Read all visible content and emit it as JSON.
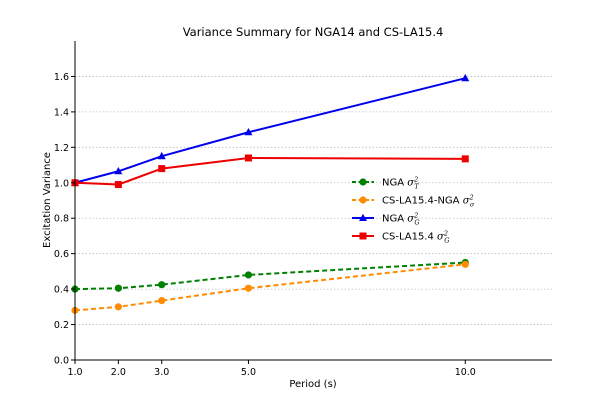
{
  "chart_data": {
    "type": "line",
    "title": "Variance Summary for NGA14 and CS-LA15.4",
    "xlabel": "Period (s)",
    "ylabel": "Excitation Variance",
    "x": [
      1.0,
      2.0,
      3.0,
      5.0,
      10.0
    ],
    "x_tick_labels": [
      "1.0",
      "2.0",
      "3.0",
      "5.0",
      "10.0"
    ],
    "y_ticks": [
      0.0,
      0.2,
      0.4,
      0.6,
      0.8,
      1.0,
      1.2,
      1.4,
      1.6
    ],
    "y_tick_labels": [
      "0.0",
      "0.2",
      "0.4",
      "0.6",
      "0.8",
      "1.0",
      "1.2",
      "1.4",
      "1.6"
    ],
    "xlim": [
      1.0,
      12.0
    ],
    "ylim": [
      0.0,
      1.8
    ],
    "grid": "horizontal dotted",
    "legend_position": "center-right",
    "series": [
      {
        "name": "NGA",
        "symbol": "σ",
        "sup": "2",
        "sub": "T",
        "color": "#008000",
        "linestyle": "dashed",
        "marker": "circle",
        "values": [
          0.4,
          0.405,
          0.425,
          0.48,
          0.55
        ]
      },
      {
        "name": "CS-LA15.4-NGA",
        "symbol": "σ",
        "sup": "2",
        "sub": "σ",
        "color": "#ff8c00",
        "linestyle": "dashed",
        "marker": "circle",
        "values": [
          0.28,
          0.3,
          0.335,
          0.405,
          0.54
        ]
      },
      {
        "name": "NGA",
        "symbol": "σ",
        "sup": "2",
        "sub": "G",
        "color": "#0000ee",
        "linestyle": "solid",
        "marker": "triangle",
        "values": [
          1.0,
          1.065,
          1.15,
          1.285,
          1.59
        ]
      },
      {
        "name": "CS-LA15.4",
        "symbol": "σ",
        "sup": "2",
        "sub": "G",
        "color": "#ee0000",
        "linestyle": "solid",
        "marker": "square",
        "values": [
          1.0,
          0.99,
          1.08,
          1.14,
          1.135
        ]
      }
    ]
  }
}
